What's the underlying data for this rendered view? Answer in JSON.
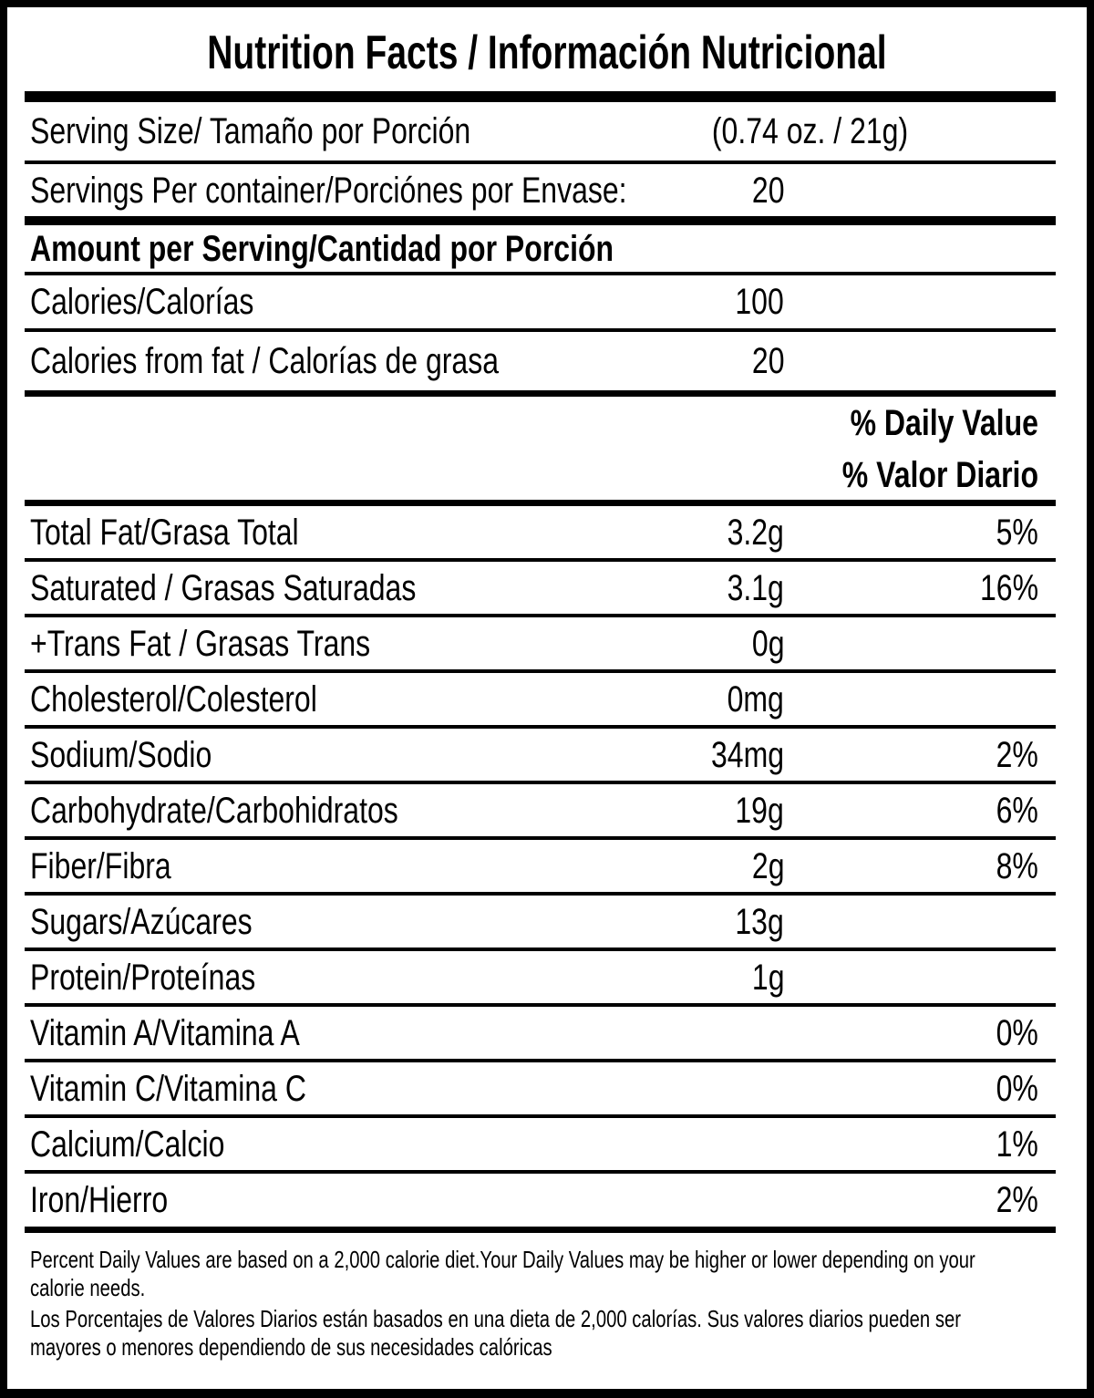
{
  "header": {
    "title": "Nutrition Facts / Información Nutricional"
  },
  "serving_size": {
    "label": "Serving Size/ Tamaño por Porción",
    "value": "(0.74 oz. / 21g)"
  },
  "servings_per_container": {
    "label": "Servings Per container/Porciónes por Envase:",
    "value": "20"
  },
  "amount_per_serving_header": "Amount per Serving/Cantidad por Porción",
  "calories": {
    "label": "Calories/Calorías",
    "value": "100"
  },
  "calories_from_fat": {
    "label": "Calories from fat / Calorías de grasa",
    "value": "20"
  },
  "daily_value_header": {
    "en": "% Daily Value",
    "es": "% Valor Diario"
  },
  "nutrients": [
    {
      "label": "Total Fat/Grasa Total",
      "amount": "3.2g",
      "dv": "5%"
    },
    {
      "label": "Saturated / Grasas Saturadas",
      "amount": "3.1g",
      "dv": "16%"
    },
    {
      "label": "+Trans Fat / Grasas Trans",
      "amount": "0g",
      "dv": ""
    },
    {
      "label": "Cholesterol/Colesterol",
      "amount": "0mg",
      "dv": ""
    },
    {
      "label": "Sodium/Sodio",
      "amount": "34mg",
      "dv": "2%"
    },
    {
      "label": "Carbohydrate/Carbohidratos",
      "amount": "19g",
      "dv": "6%"
    },
    {
      "label": "Fiber/Fibra",
      "amount": "2g",
      "dv": "8%"
    },
    {
      "label": "Sugars/Azúcares",
      "amount": "13g",
      "dv": ""
    },
    {
      "label": "Protein/Proteínas",
      "amount": "1g",
      "dv": ""
    },
    {
      "label": "Vitamin A/Vitamina A",
      "amount": "",
      "dv": "0%"
    },
    {
      "label": "Vitamin C/Vitamina C",
      "amount": "",
      "dv": "0%"
    },
    {
      "label": "Calcium/Calcio",
      "amount": "",
      "dv": "1%"
    },
    {
      "label": "Iron/Hierro",
      "amount": "",
      "dv": "2%"
    }
  ],
  "footnotes": {
    "english": [
      "Percent Daily Values are based on a 2,000 calorie diet.Your Daily Values may be higher or lower depending on your",
      "calorie needs."
    ],
    "spanish": [
      "Los Porcentajes de Valores Diarios están basados en una dieta de 2,000 calorías. Sus valores diarios pueden ser",
      "mayores o menores dependiendo de sus necesidades calóricas"
    ]
  }
}
